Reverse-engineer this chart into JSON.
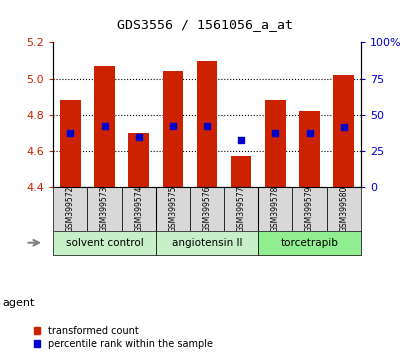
{
  "title": "GDS3556 / 1561056_a_at",
  "samples": [
    "GSM399572",
    "GSM399573",
    "GSM399574",
    "GSM399575",
    "GSM399576",
    "GSM399577",
    "GSM399578",
    "GSM399579",
    "GSM399580"
  ],
  "bar_values": [
    4.88,
    5.07,
    4.7,
    5.04,
    5.1,
    4.57,
    4.88,
    4.82,
    5.02
  ],
  "bar_base": 4.4,
  "percentile_values": [
    4.7,
    4.74,
    4.68,
    4.74,
    4.74,
    4.66,
    4.7,
    4.7,
    4.73
  ],
  "groups": [
    {
      "label": "solvent control",
      "start": 0,
      "end": 3,
      "color": "#c8f0c8"
    },
    {
      "label": "angiotensin II",
      "start": 3,
      "end": 6,
      "color": "#c8f0c8"
    },
    {
      "label": "torcetrapib",
      "start": 6,
      "end": 9,
      "color": "#90ee90"
    }
  ],
  "ylim_left": [
    4.4,
    5.2
  ],
  "ylim_right": [
    0,
    100
  ],
  "yticks_left": [
    4.4,
    4.6,
    4.8,
    5.0,
    5.2
  ],
  "yticks_right": [
    0,
    25,
    50,
    75,
    100
  ],
  "ytick_labels_right": [
    "0",
    "25",
    "50",
    "75",
    "100%"
  ],
  "bar_color": "#cc2200",
  "percentile_color": "#0000cc",
  "label_color_left": "#cc2200",
  "label_color_right": "#0000cc",
  "bar_width": 0.6,
  "agent_label": "agent",
  "legend_items": [
    "transformed count",
    "percentile rank within the sample"
  ],
  "sample_box_color": "#d8d8d8",
  "group_sep_indices": [
    2.5,
    5.5
  ]
}
